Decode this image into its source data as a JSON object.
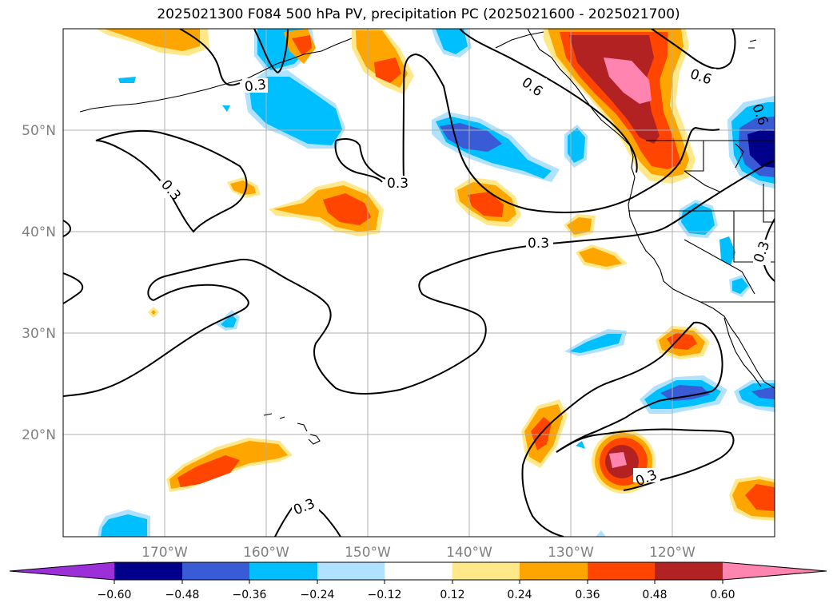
{
  "title": "2025021300 F084 500 hPa PV, precipitation PC (2025021600 - 2025021700)",
  "map": {
    "lon_labels": [
      "170°W",
      "160°W",
      "150°W",
      "140°W",
      "130°W",
      "120°W"
    ],
    "lat_labels": [
      "50°N",
      "40°N",
      "30°N",
      "20°N"
    ],
    "contour_labels": [
      "0.3",
      "0.3",
      "0.3",
      "0.3",
      "0.3",
      "0.3",
      "0.6",
      "0.6",
      "0.6",
      "0.3"
    ]
  },
  "colorbar": {
    "ticks": [
      "−0.60",
      "−0.48",
      "−0.36",
      "−0.24",
      "−0.12",
      "0.12",
      "0.24",
      "0.36",
      "0.48",
      "0.60"
    ],
    "colors": [
      "#9b30d9",
      "#00008b",
      "#3a5bd6",
      "#00bfff",
      "#b0e2ff",
      "#ffffff",
      "#ffe88a",
      "#ffa500",
      "#ff4500",
      "#b22222",
      "#ff85b0",
      "#ff85b0"
    ]
  },
  "palette": {
    "neg_3": "#3a5bd6",
    "neg_4": "#00bfff",
    "neg_5": "#b0e2ff",
    "neg_2": "#00008b",
    "pos_1": "#ffe88a",
    "pos_2": "#ffa500",
    "pos_3": "#ff4500",
    "pos_4": "#b22222",
    "pos_5": "#ff85b0"
  }
}
